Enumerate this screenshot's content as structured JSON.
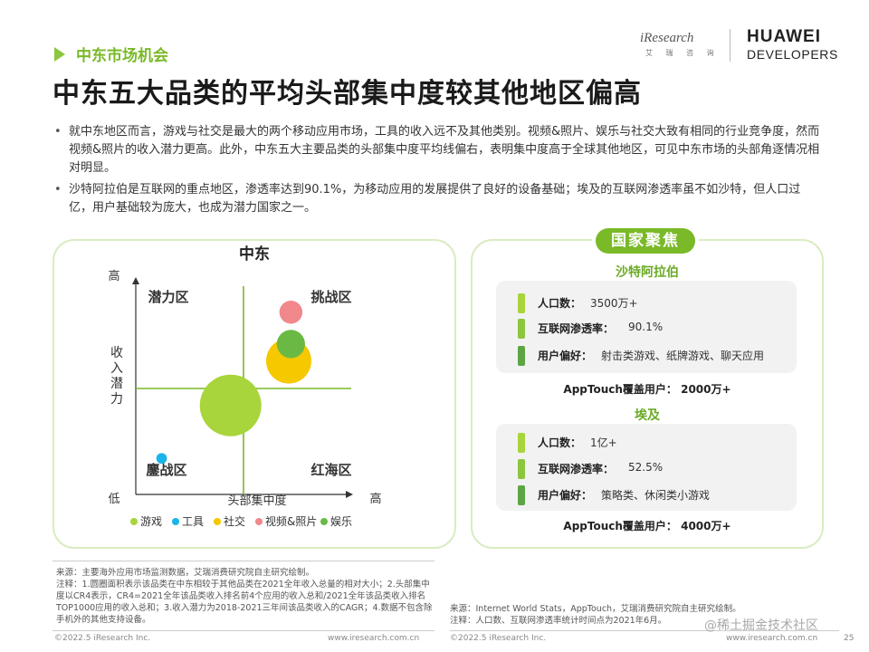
{
  "header": {
    "section_label": "中东市场机会",
    "title": "中东五大品类的平均头部集中度较其他地区偏高",
    "iresearch_logo": "iResearch",
    "iresearch_sub": "艾 瑞 咨 询",
    "huawei_name": "HUAWEI",
    "huawei_sub": "DEVELOPERS"
  },
  "bullets": [
    "就中东地区而言，游戏与社交是最大的两个移动应用市场，工具的收入远不及其他类别。视频&照片、娱乐与社交大致有相同的行业竞争度，然而视频&照片的收入潜力更高。此外，中东五大主要品类的头部集中度平均线偏右，表明集中度高于全球其他地区，可见中东市场的头部角逐情况相对明显。",
    "沙特阿拉伯是互联网的重点地区，渗透率达到90.1%，为移动应用的发展提供了良好的设备基础；埃及的互联网渗透率虽不如沙特，但人口过亿，用户基础较为庞大，也成为潜力国家之一。"
  ],
  "chart_data": {
    "type": "scatter",
    "title": "中东",
    "xlabel": "头部集中度",
    "ylabel": "收入潜力",
    "x_low": "低",
    "x_high": "高",
    "y_high": "高",
    "quadrants": {
      "top_left": "潜力区",
      "top_right": "挑战区",
      "bottom_left": "鏖战区",
      "bottom_right": "红海区"
    },
    "xlim": [
      0,
      100
    ],
    "ylim": [
      0,
      100
    ],
    "divider": {
      "x": 50,
      "y": 50
    },
    "series": [
      {
        "name": "游戏",
        "x": 44,
        "y": 42,
        "size": 100,
        "color": "#a8d53c"
      },
      {
        "name": "工具",
        "x": 12,
        "y": 17,
        "size": 3,
        "color": "#1ab5e8"
      },
      {
        "name": "社交",
        "x": 71,
        "y": 63,
        "size": 54,
        "color": "#f5c800"
      },
      {
        "name": "视频&照片",
        "x": 72,
        "y": 86,
        "size": 14,
        "color": "#f0888c"
      },
      {
        "name": "娱乐",
        "x": 72,
        "y": 71,
        "size": 21,
        "color": "#6ab945"
      }
    ]
  },
  "focus": {
    "label": "国家聚焦",
    "countries": [
      {
        "name": "沙特阿拉伯",
        "stats": [
          {
            "label": "人口数：",
            "value": "3500万+",
            "color": "#a8d53c"
          },
          {
            "label": "互联网渗透率：",
            "value": "90.1%",
            "color": "#8cc63f"
          },
          {
            "label": "用户偏好：",
            "value": "射击类游戏、纸牌游戏、聊天应用",
            "color": "#5da544"
          }
        ],
        "reach": "AppTouch覆盖用户：  2000万+"
      },
      {
        "name": "埃及",
        "stats": [
          {
            "label": "人口数：",
            "value": "1亿+",
            "color": "#a8d53c"
          },
          {
            "label": "互联网渗透率：",
            "value": "52.5%",
            "color": "#8cc63f"
          },
          {
            "label": "用户偏好：",
            "value": "策略类、休闲类小游戏",
            "color": "#5da544"
          }
        ],
        "reach": "AppTouch覆盖用户：  4000万+"
      }
    ]
  },
  "notes": {
    "left_source": "来源：主要海外应用市场监测数据，艾瑞消费研究院自主研究绘制。",
    "left_note": "注释：1.圆圈面积表示该品类在中东相较于其他品类在2021全年收入总量的相对大小；2.头部集中度以CR4表示，CR4=2021全年该品类收入排名前4个应用的收入总和/2021全年该品类收入排名TOP1000应用的收入总和；3.收入潜力为2018-2021三年间该品类收入的CAGR；4.数据不包含除手机外的其他支持设备。",
    "right_source": "来源：Internet World Stats，AppTouch，艾瑞消费研究院自主研究绘制。",
    "right_note": "注释：人口数、互联网渗透率统计时间点为2021年6月。"
  },
  "footer": {
    "copy_left": "©2022.5 iResearch Inc.",
    "url_left": "www.iresearch.com.cn",
    "copy_right": "©2022.5 iResearch Inc.",
    "url_right": "www.iresearch.com.cn",
    "page": "25",
    "watermark": "@稀土掘金技术社区"
  }
}
